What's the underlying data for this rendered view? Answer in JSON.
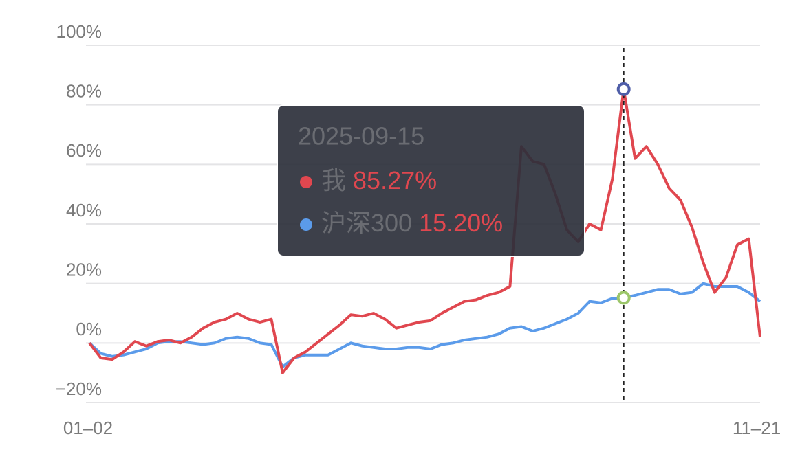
{
  "chart_data": {
    "type": "line",
    "categories": [
      "01–02",
      null,
      null,
      null,
      null,
      null,
      null,
      null,
      null,
      null,
      null,
      null,
      null,
      null,
      null,
      null,
      null,
      null,
      null,
      null,
      null,
      null,
      null,
      null,
      null,
      null,
      null,
      null,
      null,
      null,
      null,
      null,
      null,
      null,
      null,
      null,
      null,
      null,
      null,
      null,
      null,
      null,
      null,
      null,
      null,
      null,
      null,
      null,
      null,
      null,
      null,
      null,
      null,
      null,
      null,
      null,
      null,
      null,
      null,
      "11–21"
    ],
    "series": [
      {
        "name": "我",
        "color": "#e0474f",
        "values": [
          0,
          -5,
          -5.5,
          -3,
          0.5,
          -1,
          0.5,
          1,
          0,
          2,
          5,
          7,
          8,
          10,
          8,
          7,
          8,
          -10,
          -5,
          -3,
          0,
          3,
          6,
          9.5,
          9,
          10,
          8,
          5,
          6,
          7,
          7.5,
          10,
          12,
          14,
          14.5,
          16,
          17,
          19,
          66,
          61,
          60,
          50,
          38,
          34,
          40,
          38,
          55,
          85.27,
          62,
          66,
          60,
          52,
          48,
          39,
          27,
          17,
          22,
          33,
          35,
          2
        ]
      },
      {
        "name": "沪深300",
        "color": "#5b9bea",
        "values": [
          0,
          -3.5,
          -4.5,
          -4,
          -3,
          -2,
          0,
          0.5,
          0.5,
          0,
          -0.5,
          0,
          1.5,
          2,
          1.5,
          0,
          -0.5,
          -8,
          -5,
          -4,
          -4,
          -4,
          -2,
          0,
          -1,
          -1.5,
          -2,
          -2,
          -1.5,
          -1.5,
          -2,
          -0.5,
          0,
          1,
          1.5,
          2,
          3,
          5,
          5.5,
          4,
          5,
          6.5,
          8,
          10,
          14,
          13.5,
          15,
          15.2,
          16,
          17,
          18,
          18,
          16.5,
          17,
          20,
          19,
          19,
          19,
          17,
          14
        ]
      }
    ],
    "ylim": [
      -20,
      100
    ],
    "yticks": [
      {
        "value": -20,
        "label": "−20%"
      },
      {
        "value": 0,
        "label": "0%"
      },
      {
        "value": 20,
        "label": "20%"
      },
      {
        "value": 40,
        "label": "40%"
      },
      {
        "value": 60,
        "label": "60%"
      },
      {
        "value": 80,
        "label": "80%"
      },
      {
        "value": 100,
        "label": "100%"
      }
    ],
    "grid": true,
    "tooltip": {
      "title": "2025-09-15",
      "values": [
        85.27,
        15.2
      ],
      "value_labels": [
        "85.27%",
        "15.20%"
      ]
    }
  }
}
